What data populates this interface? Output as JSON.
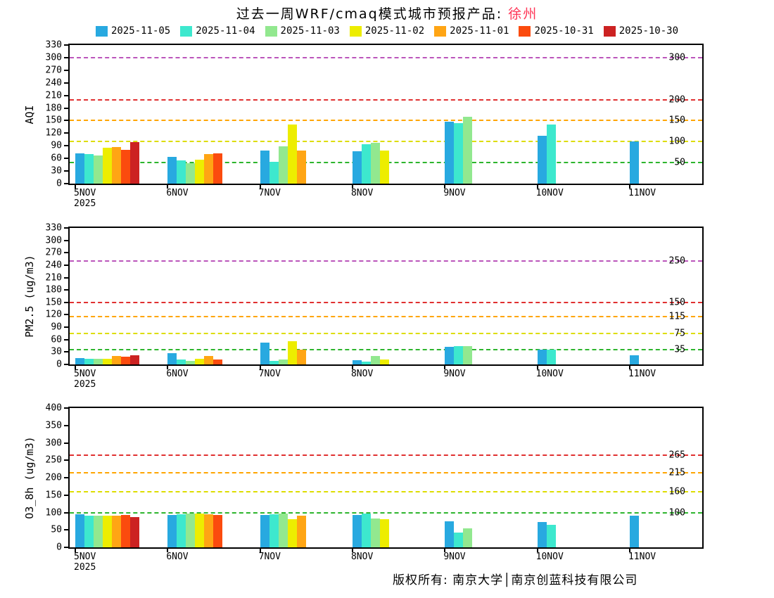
{
  "title": {
    "prefix": "过去一周WRF/cmaq模式城市预报产品:",
    "city": "徐州"
  },
  "footer": "版权所有: 南京大学│南京创蓝科技有限公司",
  "legend": [
    {
      "label": "2025-11-05",
      "color": "#28a9e0"
    },
    {
      "label": "2025-11-04",
      "color": "#3de8ce"
    },
    {
      "label": "2025-11-03",
      "color": "#92e88f"
    },
    {
      "label": "2025-11-02",
      "color": "#eded00"
    },
    {
      "label": "2025-11-01",
      "color": "#ffa514"
    },
    {
      "label": "2025-10-31",
      "color": "#fb4b0e"
    },
    {
      "label": "2025-10-30",
      "color": "#cc2222"
    }
  ],
  "chart_data": [
    {
      "id": "aqi",
      "type": "bar",
      "title": "",
      "xlabel": "",
      "ylabel": "AQI",
      "ylim": [
        0,
        330
      ],
      "yticks": [
        0,
        30,
        60,
        90,
        120,
        150,
        180,
        210,
        240,
        270,
        300,
        330
      ],
      "grid": false,
      "legend_position": "top",
      "categories": [
        {
          "label": "5NOV",
          "sub": "2025"
        },
        {
          "label": "6NOV"
        },
        {
          "label": "7NOV"
        },
        {
          "label": "8NOV"
        },
        {
          "label": "9NOV"
        },
        {
          "label": "10NOV"
        },
        {
          "label": "11NOV"
        }
      ],
      "series": [
        {
          "name": "2025-11-05",
          "values": [
            72,
            63,
            78,
            77,
            148,
            114,
            100
          ]
        },
        {
          "name": "2025-11-04",
          "values": [
            70,
            55,
            52,
            93,
            144,
            141,
            null
          ]
        },
        {
          "name": "2025-11-03",
          "values": [
            67,
            48,
            88,
            97,
            160,
            null,
            null
          ]
        },
        {
          "name": "2025-11-02",
          "values": [
            85,
            57,
            140,
            78,
            null,
            null,
            null
          ]
        },
        {
          "name": "2025-11-01",
          "values": [
            87,
            70,
            78,
            null,
            null,
            null,
            null
          ]
        },
        {
          "name": "2025-10-31",
          "values": [
            80,
            72,
            null,
            null,
            null,
            null,
            null
          ]
        },
        {
          "name": "2025-10-30",
          "values": [
            99,
            null,
            null,
            null,
            null,
            null,
            null
          ]
        }
      ],
      "thresholds": [
        {
          "value": 300,
          "label": "300",
          "color": "#bb55bb"
        },
        {
          "value": 200,
          "label": "200",
          "color": "#e03030"
        },
        {
          "value": 150,
          "label": "150",
          "color": "#ffa500"
        },
        {
          "value": 100,
          "label": "100",
          "color": "#dddd00"
        },
        {
          "value": 50,
          "label": "50",
          "color": "#2db52d"
        }
      ]
    },
    {
      "id": "pm25",
      "type": "bar",
      "title": "",
      "xlabel": "",
      "ylabel": "PM2.5 (ug/m3)",
      "ylim": [
        0,
        330
      ],
      "yticks": [
        0,
        30,
        60,
        90,
        120,
        150,
        180,
        210,
        240,
        270,
        300,
        330
      ],
      "grid": false,
      "legend_position": "top",
      "categories": [
        {
          "label": "5NOV",
          "sub": "2025"
        },
        {
          "label": "6NOV"
        },
        {
          "label": "7NOV"
        },
        {
          "label": "8NOV"
        },
        {
          "label": "9NOV"
        },
        {
          "label": "10NOV"
        },
        {
          "label": "11NOV"
        }
      ],
      "series": [
        {
          "name": "2025-11-05",
          "values": [
            15,
            28,
            52,
            10,
            42,
            35,
            22
          ]
        },
        {
          "name": "2025-11-04",
          "values": [
            14,
            12,
            8,
            7,
            45,
            35,
            null
          ]
        },
        {
          "name": "2025-11-03",
          "values": [
            13,
            8,
            12,
            20,
            44,
            null,
            null
          ]
        },
        {
          "name": "2025-11-02",
          "values": [
            13,
            13,
            57,
            12,
            null,
            null,
            null
          ]
        },
        {
          "name": "2025-11-01",
          "values": [
            20,
            20,
            35,
            null,
            null,
            null,
            null
          ]
        },
        {
          "name": "2025-10-31",
          "values": [
            18,
            12,
            null,
            null,
            null,
            null,
            null
          ]
        },
        {
          "name": "2025-10-30",
          "values": [
            22,
            null,
            null,
            null,
            null,
            null,
            null
          ]
        }
      ],
      "thresholds": [
        {
          "value": 250,
          "label": "250",
          "color": "#bb55bb"
        },
        {
          "value": 150,
          "label": "150",
          "color": "#e03030"
        },
        {
          "value": 115,
          "label": "115",
          "color": "#ffa500"
        },
        {
          "value": 75,
          "label": "75",
          "color": "#dddd00"
        },
        {
          "value": 35,
          "label": "35",
          "color": "#2db52d"
        }
      ]
    },
    {
      "id": "o3-8h",
      "type": "bar",
      "title": "",
      "xlabel": "",
      "ylabel": "O3_8h (ug/m3)",
      "ylim": [
        0,
        400
      ],
      "yticks": [
        0,
        50,
        100,
        150,
        200,
        250,
        300,
        350,
        400
      ],
      "grid": false,
      "legend_position": "top",
      "categories": [
        {
          "label": "5NOV",
          "sub": "2025"
        },
        {
          "label": "6NOV"
        },
        {
          "label": "7NOV"
        },
        {
          "label": "8NOV"
        },
        {
          "label": "9NOV"
        },
        {
          "label": "10NOV"
        },
        {
          "label": "11NOV"
        }
      ],
      "series": [
        {
          "name": "2025-11-05",
          "values": [
            95,
            93,
            92,
            93,
            75,
            72,
            90
          ]
        },
        {
          "name": "2025-11-04",
          "values": [
            90,
            95,
            95,
            98,
            42,
            65,
            null
          ]
        },
        {
          "name": "2025-11-03",
          "values": [
            90,
            97,
            97,
            83,
            55,
            null,
            null
          ]
        },
        {
          "name": "2025-11-02",
          "values": [
            90,
            97,
            80,
            80,
            null,
            null,
            null
          ]
        },
        {
          "name": "2025-11-01",
          "values": [
            90,
            95,
            90,
            null,
            null,
            null,
            null
          ]
        },
        {
          "name": "2025-10-31",
          "values": [
            92,
            92,
            null,
            null,
            null,
            null,
            null
          ]
        },
        {
          "name": "2025-10-30",
          "values": [
            87,
            null,
            null,
            null,
            null,
            null,
            null
          ]
        }
      ],
      "thresholds": [
        {
          "value": 265,
          "label": "265",
          "color": "#e03030"
        },
        {
          "value": 215,
          "label": "215",
          "color": "#ffa500"
        },
        {
          "value": 160,
          "label": "160",
          "color": "#dddd00"
        },
        {
          "value": 100,
          "label": "100",
          "color": "#2db52d"
        }
      ]
    }
  ]
}
